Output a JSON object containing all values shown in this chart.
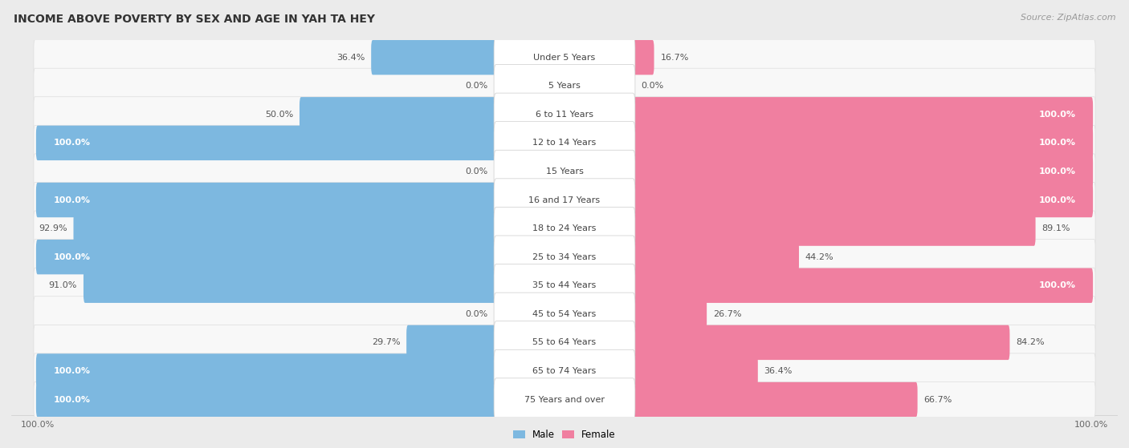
{
  "title": "INCOME ABOVE POVERTY BY SEX AND AGE IN YAH TA HEY",
  "source": "Source: ZipAtlas.com",
  "categories": [
    "Under 5 Years",
    "5 Years",
    "6 to 11 Years",
    "12 to 14 Years",
    "15 Years",
    "16 and 17 Years",
    "18 to 24 Years",
    "25 to 34 Years",
    "35 to 44 Years",
    "45 to 54 Years",
    "55 to 64 Years",
    "65 to 74 Years",
    "75 Years and over"
  ],
  "male": [
    36.4,
    0.0,
    50.0,
    100.0,
    0.0,
    100.0,
    92.9,
    100.0,
    91.0,
    0.0,
    29.7,
    100.0,
    100.0
  ],
  "female": [
    16.7,
    0.0,
    100.0,
    100.0,
    100.0,
    100.0,
    89.1,
    44.2,
    100.0,
    26.7,
    84.2,
    36.4,
    66.7
  ],
  "male_color": "#7db8e0",
  "female_color": "#f07fa0",
  "male_color_light": "#aed0eb",
  "female_color_light": "#f5aabf",
  "bg_color": "#ebebeb",
  "row_bg_color": "#f8f8f8",
  "title_fontsize": 10,
  "source_fontsize": 8,
  "label_fontsize": 8,
  "category_fontsize": 8,
  "value_color_dark": "#555555",
  "value_color_white": "#ffffff"
}
